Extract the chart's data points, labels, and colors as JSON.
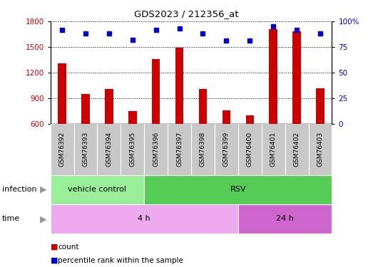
{
  "title": "GDS2023 / 212356_at",
  "samples": [
    "GSM76392",
    "GSM76393",
    "GSM76394",
    "GSM76395",
    "GSM76396",
    "GSM76397",
    "GSM76398",
    "GSM76399",
    "GSM76400",
    "GSM76401",
    "GSM76402",
    "GSM76403"
  ],
  "counts": [
    1310,
    950,
    1010,
    750,
    1360,
    1490,
    1010,
    760,
    700,
    1710,
    1680,
    1020
  ],
  "percentile_ranks": [
    92,
    88,
    88,
    82,
    92,
    93,
    88,
    81,
    81,
    95,
    92,
    88
  ],
  "ylim_left": [
    600,
    1800
  ],
  "yticks_left": [
    600,
    900,
    1200,
    1500,
    1800
  ],
  "ylim_right": [
    0,
    100
  ],
  "yticks_right": [
    0,
    25,
    50,
    75,
    100
  ],
  "bar_color": "#cc0000",
  "dot_color": "#0000cc",
  "infection_labels": [
    {
      "label": "vehicle control",
      "start": 0,
      "end": 4,
      "color": "#99ee99"
    },
    {
      "label": "RSV",
      "start": 4,
      "end": 12,
      "color": "#55cc55"
    }
  ],
  "time_labels": [
    {
      "label": "4 h",
      "start": 0,
      "end": 8,
      "color": "#eeaaee"
    },
    {
      "label": "24 h",
      "start": 8,
      "end": 12,
      "color": "#cc66cc"
    }
  ],
  "infection_row_label": "infection",
  "time_row_label": "time",
  "legend_count_label": "count",
  "legend_percentile_label": "percentile rank within the sample",
  "bar_color_red": "#cc0000",
  "dot_color_blue": "#0000cc",
  "grid_color": "#000000",
  "background_color": "#ffffff",
  "tick_bg_color": "#c8c8c8",
  "arrow_color": "#999999"
}
